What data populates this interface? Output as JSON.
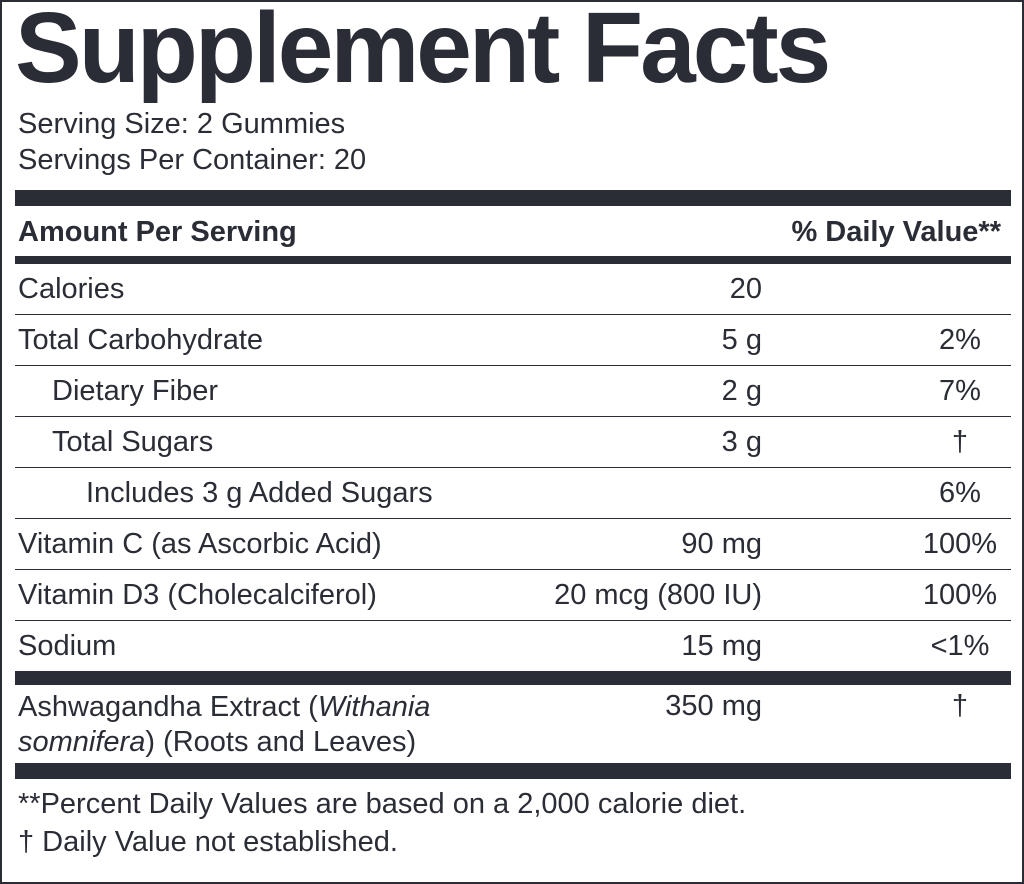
{
  "title": "Supplement Facts",
  "serving_size": "Serving Size: 2 Gummies",
  "servings_per_container": "Servings Per Container: 20",
  "table": {
    "header": [
      "Amount Per Serving",
      "% Daily Value**"
    ],
    "rows": [
      {
        "name": "Calories",
        "amount": "20"
      },
      {
        "name": "Total Carbohydrate",
        "amount": "5 g",
        "dv": "2%"
      },
      {
        "name": "Dietary Fiber",
        "amount": "2 g",
        "dv": "7%"
      },
      {
        "name": "Total Sugars",
        "amount": "3 g",
        "dv": "†"
      },
      {
        "name": "Includes 3 g Added Sugars",
        "dv": "6%"
      },
      {
        "name": "Vitamin C (as Ascorbic Acid)",
        "amount": "90 mg",
        "dv": "100%"
      },
      {
        "name": "Vitamin D3 (Cholecalciferol)",
        "amount": "20 mcg (800 IU)",
        "dv": "100%"
      },
      {
        "name": "Sodium",
        "amount": "15 mg",
        "dv": "<1%"
      }
    ],
    "other": {
      "name_parts": [
        "Ashwagandha Extract (",
        "Withania somnifera",
        ") (Roots and Leaves)"
      ],
      "amount": "350 mg",
      "dv": "†"
    }
  },
  "footnotes": [
    "**Percent Daily Values are based on a 2,000 calorie diet.",
    "† Daily Value not established."
  ]
}
